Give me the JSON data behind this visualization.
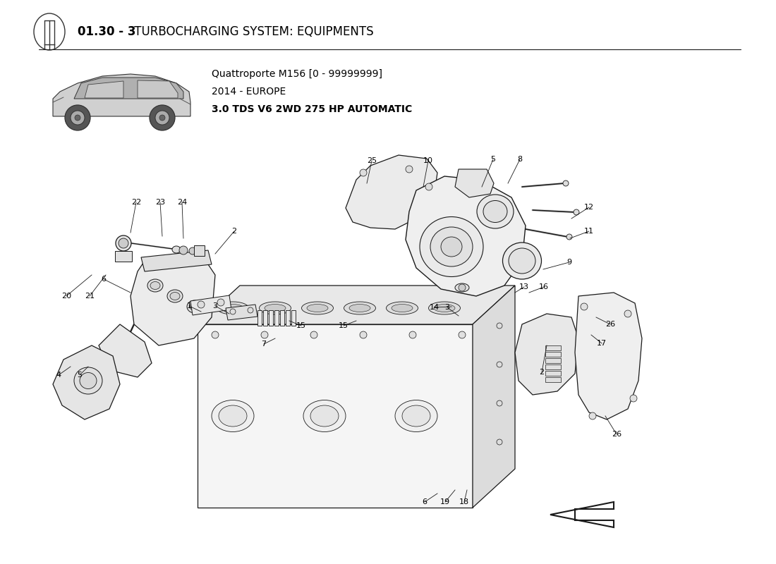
{
  "title_bold": "01.30 - 3",
  "title_normal": " TURBOCHARGING SYSTEM: EQUIPMENTS",
  "subtitle_line1": "Quattroporte M156 [0 - 99999999]",
  "subtitle_line2": "2014 - EUROPE",
  "subtitle_line3": "3.0 TDS V6 2WD 275 HP AUTOMATIC",
  "bg_color": "#FFFFFF",
  "text_color": "#000000",
  "dc": "#1a1a1a",
  "figsize": [
    11.0,
    8.0
  ],
  "dpi": 100,
  "labels": [
    [
      "22",
      195,
      293
    ],
    [
      "23",
      232,
      293
    ],
    [
      "24",
      258,
      293
    ],
    [
      "20",
      96,
      422
    ],
    [
      "21",
      127,
      422
    ],
    [
      "6",
      148,
      398
    ],
    [
      "2",
      333,
      330
    ],
    [
      "4",
      86,
      530
    ],
    [
      "5",
      117,
      530
    ],
    [
      "1",
      270,
      432
    ],
    [
      "3",
      307,
      432
    ],
    [
      "15",
      428,
      464
    ],
    [
      "15",
      487,
      464
    ],
    [
      "7",
      375,
      487
    ],
    [
      "25",
      527,
      230
    ],
    [
      "10",
      608,
      230
    ],
    [
      "5",
      700,
      228
    ],
    [
      "8",
      737,
      228
    ],
    [
      "12",
      836,
      296
    ],
    [
      "11",
      836,
      328
    ],
    [
      "9",
      810,
      374
    ],
    [
      "13",
      746,
      408
    ],
    [
      "16",
      773,
      408
    ],
    [
      "14",
      618,
      438
    ],
    [
      "3",
      636,
      438
    ],
    [
      "26",
      867,
      462
    ],
    [
      "17",
      855,
      488
    ],
    [
      "2",
      770,
      530
    ],
    [
      "26",
      876,
      618
    ],
    [
      "6",
      604,
      710
    ],
    [
      "19",
      633,
      710
    ],
    [
      "18",
      660,
      710
    ]
  ]
}
